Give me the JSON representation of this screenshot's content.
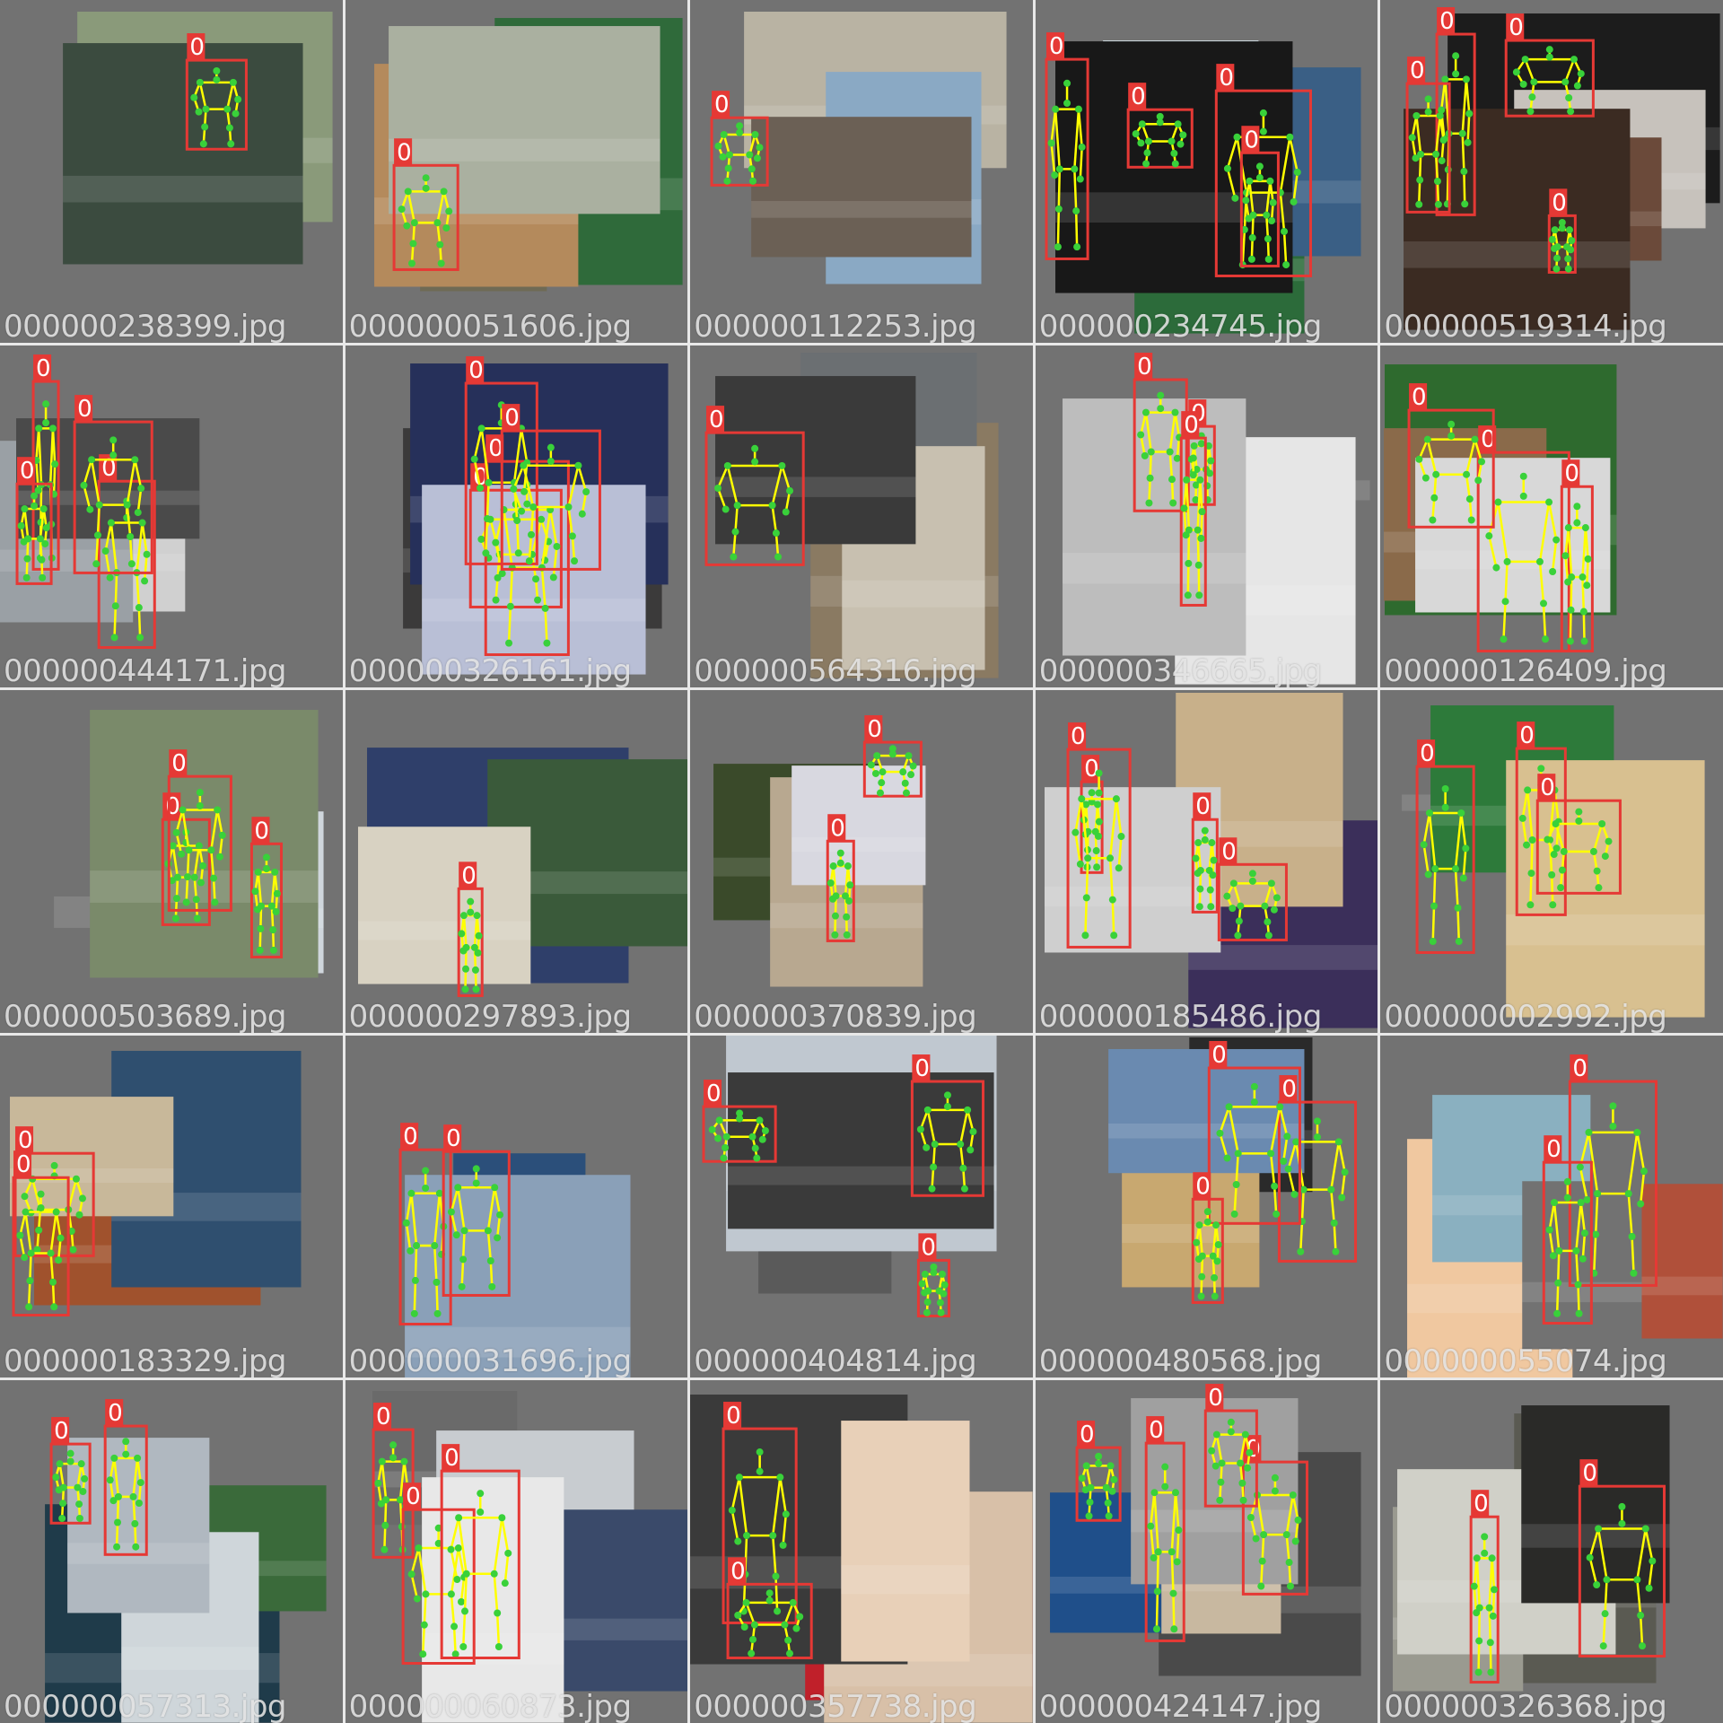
{
  "grid": {
    "tiles": [
      {
        "filename": "000000238399.jpg",
        "label": "0"
      },
      {
        "filename": "000000051606.jpg",
        "label": "0"
      },
      {
        "filename": "000000112253.jpg",
        "label": "0"
      },
      {
        "filename": "000000234745.jpg",
        "label": "0"
      },
      {
        "filename": "000000519314.jpg",
        "label": "0"
      },
      {
        "filename": "000000444171.jpg",
        "label": "0"
      },
      {
        "filename": "000000326161.jpg",
        "label": "0"
      },
      {
        "filename": "000000564316.jpg",
        "label": "0"
      },
      {
        "filename": "000000346665.jpg",
        "label": "0"
      },
      {
        "filename": "000000126409.jpg",
        "label": "0"
      },
      {
        "filename": "000000503689.jpg",
        "label": "0"
      },
      {
        "filename": "000000297893.jpg",
        "label": "0"
      },
      {
        "filename": "000000370839.jpg",
        "label": "0"
      },
      {
        "filename": "000000185486.jpg",
        "label": "0"
      },
      {
        "filename": "000000002992.jpg",
        "label": "0"
      },
      {
        "filename": "000000183329.jpg",
        "label": "0"
      },
      {
        "filename": "000000031696.jpg",
        "label": "0"
      },
      {
        "filename": "000000404814.jpg",
        "label": "0"
      },
      {
        "filename": "000000480568.jpg",
        "label": "0"
      },
      {
        "filename": "000000055074.jpg",
        "label": "0"
      },
      {
        "filename": "000000057313.jpg",
        "label": "0"
      },
      {
        "filename": "000000060873.jpg",
        "label": "0"
      },
      {
        "filename": "000000357738.jpg",
        "label": "0"
      },
      {
        "filename": "000000424147.jpg",
        "label": "0"
      },
      {
        "filename": "000000326368.jpg",
        "label": "0"
      }
    ]
  },
  "colors": {
    "box": "#e53935",
    "skeleton": "#ffff00",
    "keypoint": "#39d13a",
    "padding": "#727272"
  }
}
